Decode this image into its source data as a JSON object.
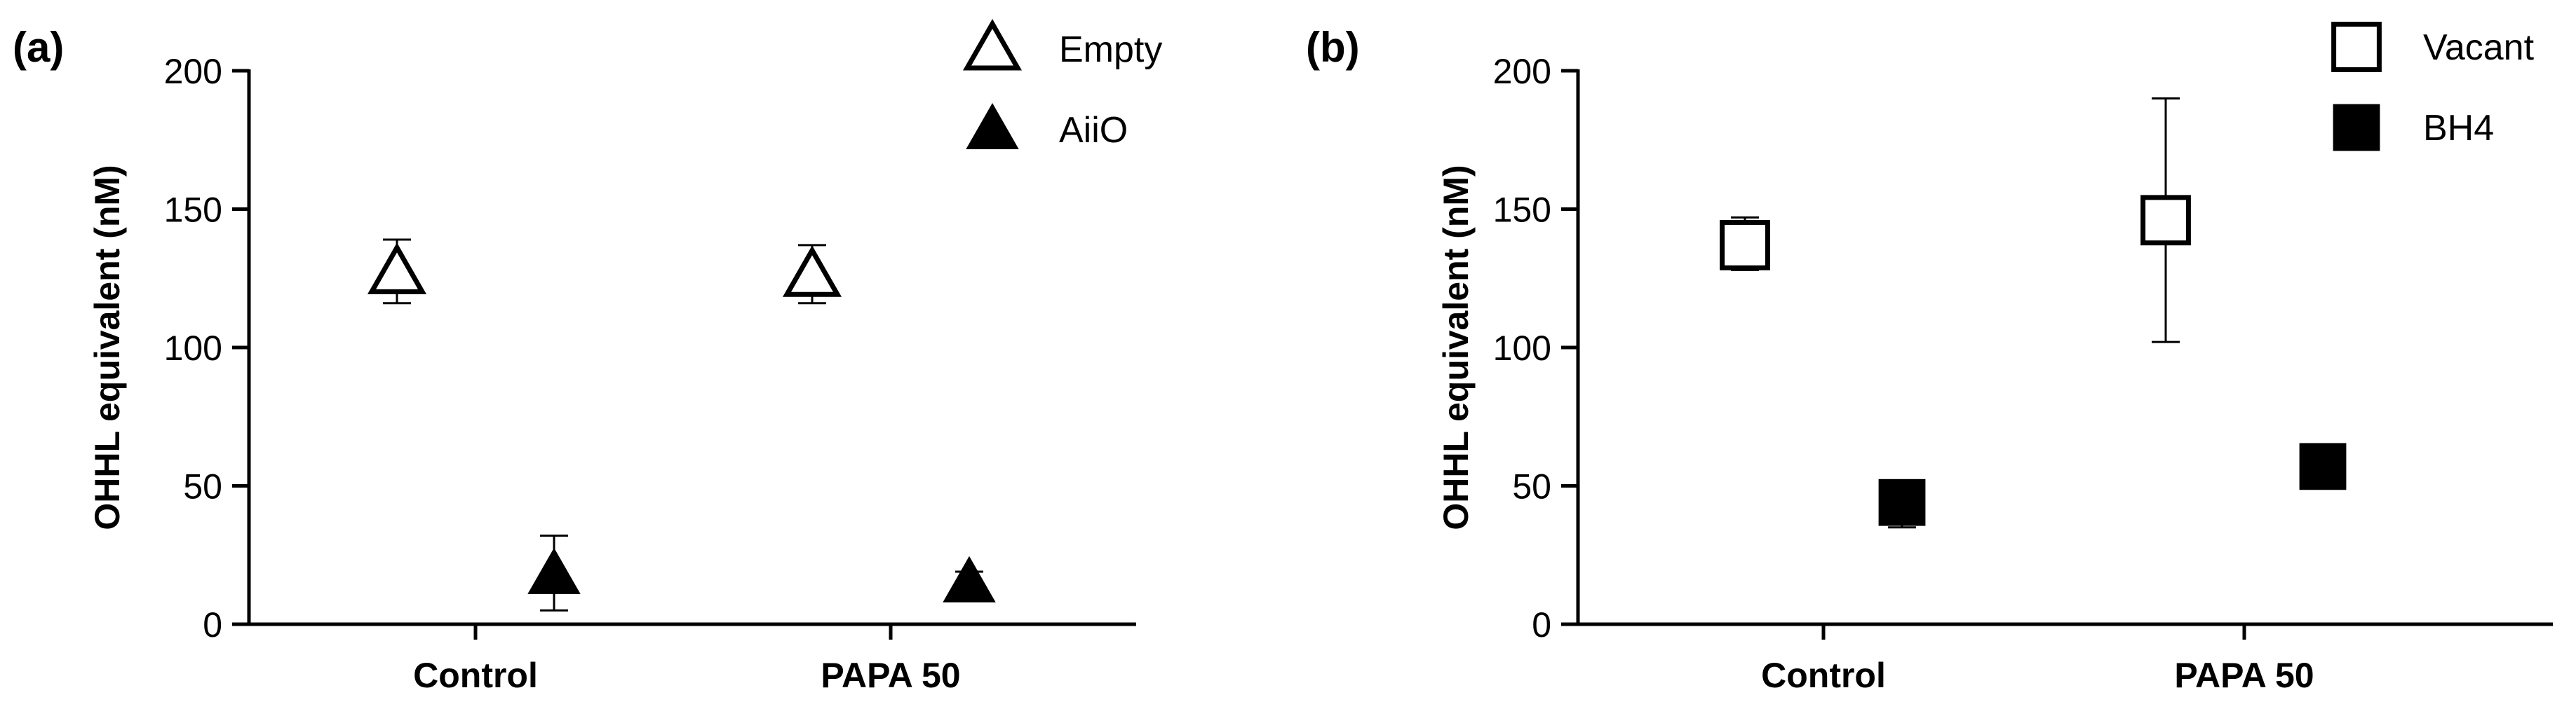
{
  "chart_data": [
    {
      "type": "scatter",
      "panel_label": "(a)",
      "categories": [
        "Control",
        "PAPA 50"
      ],
      "ylabel": "OHHL equivalent (nM)",
      "xlabel": "",
      "ylim": [
        0,
        200
      ],
      "yticks": [
        "0",
        "50",
        "100",
        "150",
        "200"
      ],
      "legend_position": "top-right",
      "series": [
        {
          "name": "Empty",
          "marker": "triangle-open",
          "color": "#000000",
          "values": [
            127,
            126
          ],
          "err_low": [
            116,
            116
          ],
          "err_high": [
            139,
            137
          ]
        },
        {
          "name": "AiiO",
          "marker": "triangle-filled",
          "color": "#000000",
          "values": [
            18,
            15
          ],
          "err_low": [
            5,
            13
          ],
          "err_high": [
            32,
            19
          ]
        }
      ]
    },
    {
      "type": "scatter",
      "panel_label": "(b)",
      "categories": [
        "Control",
        "PAPA 50"
      ],
      "ylabel": "OHHL equivalent (nM)",
      "xlabel": "",
      "ylim": [
        0,
        200
      ],
      "yticks": [
        "0",
        "50",
        "100",
        "150",
        "200"
      ],
      "legend_position": "top-right",
      "series": [
        {
          "name": "Vacant",
          "marker": "square-open",
          "color": "#000000",
          "values": [
            137,
            146
          ],
          "err_low": [
            128,
            102
          ],
          "err_high": [
            147,
            190
          ]
        },
        {
          "name": "BH4",
          "marker": "square-filled",
          "color": "#000000",
          "values": [
            44,
            57
          ],
          "err_low": [
            35,
            55
          ],
          "err_high": [
            52,
            59
          ]
        }
      ]
    }
  ]
}
